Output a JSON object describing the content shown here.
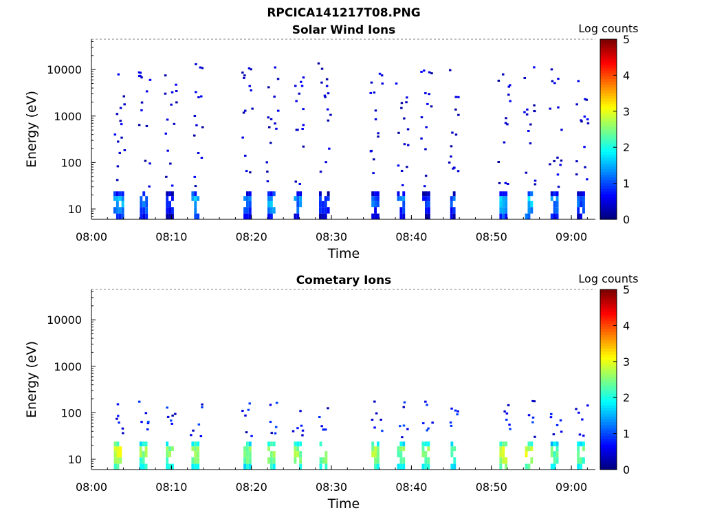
{
  "figure_title": "RPCICA141217T08.PNG",
  "chart_data": [
    {
      "type": "heatmap",
      "title": "Solar Wind Ions",
      "xlabel": "Time",
      "ylabel": "Energy (eV)",
      "y_scale": "log",
      "ylim": [
        6,
        45000
      ],
      "xlim": [
        "08:00",
        "09:03"
      ],
      "x_ticks": [
        "08:00",
        "08:10",
        "08:20",
        "08:30",
        "08:40",
        "08:50",
        "09:00"
      ],
      "y_ticks": [
        "10",
        "100",
        "1000",
        "10000"
      ],
      "colorbar": {
        "label": "Log counts",
        "min": 0,
        "max": 5,
        "ticks": [
          "0",
          "1",
          "2",
          "3",
          "4",
          "5"
        ],
        "colormap": "jet"
      },
      "bursts": [
        {
          "t": 3.3,
          "width": 1.1,
          "log_counts": 1.2
        },
        {
          "t": 6.5,
          "width": 0.9,
          "log_counts": 1.0
        },
        {
          "t": 9.8,
          "width": 1.0,
          "log_counts": 0.6
        },
        {
          "t": 13.0,
          "width": 1.0,
          "log_counts": 1.3
        },
        {
          "t": 19.5,
          "width": 1.0,
          "log_counts": 0.9
        },
        {
          "t": 22.5,
          "width": 1.0,
          "log_counts": 1.2
        },
        {
          "t": 25.8,
          "width": 1.0,
          "log_counts": 1.0
        },
        {
          "t": 29.0,
          "width": 1.1,
          "log_counts": 0.7
        },
        {
          "t": 35.5,
          "width": 1.0,
          "log_counts": 0.8
        },
        {
          "t": 38.7,
          "width": 1.0,
          "log_counts": 0.9
        },
        {
          "t": 41.8,
          "width": 0.9,
          "log_counts": 0.6
        },
        {
          "t": 45.2,
          "width": 0.7,
          "log_counts": 0.8
        },
        {
          "t": 51.5,
          "width": 1.0,
          "log_counts": 1.3
        },
        {
          "t": 54.7,
          "width": 1.0,
          "log_counts": 1.4
        },
        {
          "t": 57.9,
          "width": 1.0,
          "log_counts": 1.0
        },
        {
          "t": 61.2,
          "width": 1.0,
          "log_counts": 0.8
        }
      ]
    },
    {
      "type": "heatmap",
      "title": "Cometary Ions",
      "xlabel": "Time",
      "ylabel": "Energy (eV)",
      "y_scale": "log",
      "ylim": [
        6,
        45000
      ],
      "xlim": [
        "08:00",
        "09:03"
      ],
      "x_ticks": [
        "08:00",
        "08:10",
        "08:20",
        "08:30",
        "08:40",
        "08:50",
        "09:00"
      ],
      "y_ticks": [
        "10",
        "100",
        "1000",
        "10000"
      ],
      "colorbar": {
        "label": "Log counts",
        "min": 0,
        "max": 5,
        "ticks": [
          "0",
          "1",
          "2",
          "3",
          "4",
          "5"
        ],
        "colormap": "jet"
      },
      "bursts": [
        {
          "t": 3.3,
          "width": 1.0,
          "log_counts": 2.7
        },
        {
          "t": 6.5,
          "width": 1.0,
          "log_counts": 2.3
        },
        {
          "t": 9.8,
          "width": 1.0,
          "log_counts": 2.3
        },
        {
          "t": 13.0,
          "width": 1.0,
          "log_counts": 2.4
        },
        {
          "t": 19.5,
          "width": 1.0,
          "log_counts": 2.3
        },
        {
          "t": 22.5,
          "width": 1.0,
          "log_counts": 2.4
        },
        {
          "t": 25.8,
          "width": 1.0,
          "log_counts": 2.3
        },
        {
          "t": 29.0,
          "width": 1.0,
          "log_counts": 2.5
        },
        {
          "t": 35.5,
          "width": 1.0,
          "log_counts": 2.4
        },
        {
          "t": 38.7,
          "width": 1.0,
          "log_counts": 2.2
        },
        {
          "t": 41.8,
          "width": 1.0,
          "log_counts": 2.3
        },
        {
          "t": 45.2,
          "width": 0.6,
          "log_counts": 2.0
        },
        {
          "t": 51.5,
          "width": 1.0,
          "log_counts": 2.7
        },
        {
          "t": 54.7,
          "width": 1.0,
          "log_counts": 2.6
        },
        {
          "t": 57.9,
          "width": 1.0,
          "log_counts": 2.1
        },
        {
          "t": 61.2,
          "width": 1.0,
          "log_counts": 2.2
        }
      ]
    }
  ]
}
